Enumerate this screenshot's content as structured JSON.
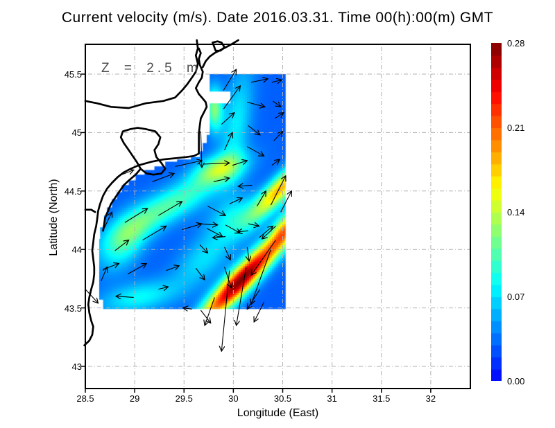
{
  "title": "Current velocity (m/s). Date 2016.03.31. Time 00(h):00(m) GMT",
  "annotation": {
    "depth_label": "Z = 2.5 m"
  },
  "axes": {
    "x": {
      "label": "Longitude (East)",
      "tick_labels": [
        "28.5",
        "29",
        "29.5",
        "30",
        "30.5",
        "31",
        "31.5",
        "32"
      ],
      "tick_values": [
        28.5,
        29,
        29.5,
        30,
        30.5,
        31,
        31.5,
        32
      ],
      "range": [
        28.5,
        32.4
      ]
    },
    "y": {
      "label": "Latitude (North)",
      "tick_labels": [
        "43",
        "43.5",
        "44",
        "44.5",
        "45",
        "45.5"
      ],
      "tick_values": [
        43,
        43.5,
        44,
        44.5,
        45,
        45.5
      ],
      "range": [
        42.81,
        45.75
      ]
    },
    "grid": true
  },
  "colorbar": {
    "tick_labels": [
      "0.00",
      "0.07",
      "0.14",
      "0.21",
      "0.28"
    ],
    "tick_values": [
      0,
      0.07,
      0.14,
      0.21,
      0.28
    ],
    "vmin": 0,
    "vmax": 0.28
  },
  "chart_data": {
    "type": "heatmap",
    "subtype": "vector-field-quiver-over-speed-heatmap",
    "title": "Current velocity (m/s). Date 2016.03.31. Time 00(h):00(m) GMT",
    "units": "m/s",
    "depth_m": 2.5,
    "date": "2016.03.31",
    "time_gmt": "00(h):00(m)",
    "xlabel": "Longitude (East)",
    "ylabel": "Latitude (North)",
    "legend_position": "right-colorbar",
    "colors": {
      "coast": "#000000",
      "grid": "#b0b0b0",
      "arrow": "#000000",
      "annotation": "#4d4d4d",
      "land": "#ffffff"
    },
    "field": {
      "comment": "speed (m/s) = base + sum of rotated gaussian blobs [lon,lat,amp,sigma_major_deg,sigma_minor_deg,rotation_deg]",
      "base": 0.03,
      "blobs": [
        [
          30.08,
          43.74,
          0.25,
          0.4,
          0.075,
          41
        ],
        [
          30.48,
          44.52,
          0.15,
          0.25,
          0.07,
          40
        ],
        [
          30.53,
          44.18,
          0.11,
          0.15,
          0.07,
          50
        ],
        [
          29.32,
          44.36,
          0.075,
          0.45,
          0.1,
          25
        ],
        [
          29.85,
          44.69,
          0.085,
          0.18,
          0.08,
          15
        ],
        [
          28.9,
          44.06,
          0.06,
          0.2,
          0.12,
          45
        ],
        [
          29.81,
          45.2,
          0.09,
          0.13,
          0.06,
          90
        ],
        [
          30.03,
          45.07,
          0.045,
          0.35,
          0.1,
          80
        ],
        [
          29.04,
          43.59,
          0.05,
          0.28,
          0.09,
          10
        ],
        [
          30.04,
          44.27,
          0.05,
          0.2,
          0.12,
          20
        ],
        [
          29.7,
          43.92,
          0.04,
          0.25,
          0.12,
          35
        ]
      ]
    },
    "data_region": [
      [
        29.76,
        45.5
      ],
      [
        30.53,
        45.5
      ],
      [
        30.53,
        43.49
      ],
      [
        28.68,
        43.49
      ],
      [
        28.68,
        43.57
      ],
      [
        28.6,
        43.57
      ],
      [
        28.6,
        43.62
      ],
      [
        28.56,
        43.62
      ],
      [
        28.56,
        43.88
      ],
      [
        28.59,
        43.88
      ],
      [
        28.59,
        44.0
      ],
      [
        28.62,
        44.0
      ],
      [
        28.62,
        44.09
      ],
      [
        28.65,
        44.09
      ],
      [
        28.65,
        44.19
      ],
      [
        28.69,
        44.19
      ],
      [
        28.69,
        44.29
      ],
      [
        28.72,
        44.29
      ],
      [
        28.72,
        44.36
      ],
      [
        28.77,
        44.36
      ],
      [
        28.77,
        44.43
      ],
      [
        28.82,
        44.43
      ],
      [
        28.82,
        44.49
      ],
      [
        28.87,
        44.49
      ],
      [
        28.87,
        44.55
      ],
      [
        28.94,
        44.55
      ],
      [
        28.94,
        44.59
      ],
      [
        29.01,
        44.59
      ],
      [
        29.01,
        44.64
      ],
      [
        29.1,
        44.64
      ],
      [
        29.1,
        44.68
      ],
      [
        29.2,
        44.68
      ],
      [
        29.2,
        44.71
      ],
      [
        29.31,
        44.71
      ],
      [
        29.31,
        44.75
      ],
      [
        29.43,
        44.75
      ],
      [
        29.43,
        44.77
      ],
      [
        29.57,
        44.77
      ],
      [
        29.57,
        44.79
      ],
      [
        29.66,
        44.79
      ],
      [
        29.66,
        44.84
      ],
      [
        29.69,
        44.84
      ],
      [
        29.69,
        44.91
      ],
      [
        29.73,
        44.91
      ],
      [
        29.73,
        44.98
      ],
      [
        29.76,
        44.98
      ],
      [
        29.76,
        45.25
      ],
      [
        29.97,
        45.25
      ],
      [
        29.97,
        45.35
      ],
      [
        29.76,
        45.35
      ]
    ],
    "coastlines": [
      [
        [
          28.5,
          45.27
        ],
        [
          28.62,
          45.25
        ],
        [
          28.76,
          45.22
        ],
        [
          28.94,
          45.21
        ],
        [
          29.11,
          45.25
        ],
        [
          29.29,
          45.27
        ],
        [
          29.41,
          45.3
        ],
        [
          29.48,
          45.36
        ],
        [
          29.53,
          45.41
        ],
        [
          29.58,
          45.47
        ],
        [
          29.62,
          45.52
        ],
        [
          29.64,
          45.59
        ],
        [
          29.62,
          45.66
        ],
        [
          29.64,
          45.72
        ],
        [
          29.63,
          45.79
        ]
      ],
      [
        [
          29.65,
          45.72
        ],
        [
          29.67,
          45.68
        ],
        [
          29.65,
          45.63
        ],
        [
          29.66,
          45.58
        ],
        [
          29.69,
          45.52
        ],
        [
          29.68,
          45.47
        ],
        [
          29.65,
          45.43
        ],
        [
          29.62,
          45.38
        ],
        [
          29.65,
          45.33
        ],
        [
          29.69,
          45.29
        ],
        [
          29.72,
          45.26
        ],
        [
          29.73,
          45.22
        ],
        [
          29.7,
          45.17
        ],
        [
          29.67,
          45.12
        ],
        [
          29.66,
          45.06
        ],
        [
          29.65,
          44.99
        ],
        [
          29.65,
          44.91
        ],
        [
          29.65,
          44.82
        ],
        [
          29.6,
          44.8
        ],
        [
          29.52,
          44.79
        ],
        [
          29.41,
          44.78
        ],
        [
          29.29,
          44.77
        ],
        [
          29.17,
          44.75
        ],
        [
          29.04,
          44.72
        ],
        [
          28.96,
          44.69
        ],
        [
          28.89,
          44.66
        ],
        [
          28.83,
          44.62
        ],
        [
          28.77,
          44.57
        ],
        [
          28.72,
          44.52
        ],
        [
          28.68,
          44.46
        ],
        [
          28.65,
          44.39
        ],
        [
          28.63,
          44.33
        ],
        [
          28.62,
          44.26
        ],
        [
          28.61,
          44.2
        ],
        [
          28.59,
          44.13
        ],
        [
          28.58,
          44.06
        ],
        [
          28.57,
          43.99
        ],
        [
          28.58,
          43.92
        ],
        [
          28.59,
          43.85
        ],
        [
          28.59,
          43.79
        ],
        [
          28.58,
          43.72
        ],
        [
          28.56,
          43.66
        ],
        [
          28.54,
          43.59
        ],
        [
          28.53,
          43.53
        ],
        [
          28.54,
          43.46
        ],
        [
          28.56,
          43.39
        ],
        [
          28.58,
          43.34
        ],
        [
          28.57,
          43.27
        ],
        [
          28.54,
          43.22
        ],
        [
          28.49,
          43.18
        ]
      ],
      [
        [
          30.05,
          45.79
        ],
        [
          29.97,
          45.75
        ],
        [
          29.88,
          45.71
        ],
        [
          29.81,
          45.68
        ],
        [
          29.76,
          45.65
        ],
        [
          29.72,
          45.61
        ],
        [
          29.69,
          45.56
        ]
      ],
      [
        [
          29.79,
          45.77
        ],
        [
          29.84,
          45.78
        ],
        [
          29.88,
          45.77
        ],
        [
          29.91,
          45.73
        ],
        [
          29.87,
          45.7
        ],
        [
          29.82,
          45.7
        ],
        [
          29.79,
          45.77
        ]
      ],
      [
        [
          29.11,
          45.03
        ],
        [
          29.21,
          45.01
        ],
        [
          29.26,
          44.96
        ],
        [
          29.24,
          44.9
        ],
        [
          29.2,
          44.85
        ],
        [
          29.22,
          44.79
        ],
        [
          29.27,
          44.74
        ],
        [
          29.31,
          44.69
        ],
        [
          29.27,
          44.65
        ],
        [
          29.19,
          44.64
        ],
        [
          29.12,
          44.65
        ],
        [
          29.06,
          44.69
        ],
        [
          29.02,
          44.75
        ],
        [
          28.98,
          44.8
        ],
        [
          28.94,
          44.85
        ],
        [
          28.89,
          44.91
        ],
        [
          28.86,
          44.96
        ],
        [
          28.88,
          45.01
        ],
        [
          28.96,
          45.03
        ],
        [
          29.03,
          45.04
        ],
        [
          29.11,
          45.03
        ]
      ],
      [
        [
          29.06,
          44.69
        ],
        [
          29.01,
          44.64
        ],
        [
          28.94,
          44.59
        ],
        [
          28.89,
          44.55
        ],
        [
          28.84,
          44.49
        ],
        [
          28.8,
          44.44
        ],
        [
          28.76,
          44.39
        ],
        [
          28.73,
          44.33
        ],
        [
          28.7,
          44.27
        ],
        [
          28.69,
          44.21
        ],
        [
          28.68,
          44.16
        ]
      ],
      [
        [
          28.5,
          44.34
        ],
        [
          28.56,
          44.34
        ],
        [
          28.6,
          44.32
        ]
      ]
    ],
    "arrows": [
      [
        29.9,
        45.36,
        0.13,
        0.18
      ],
      [
        30.18,
        45.43,
        0.17,
        0.03
      ],
      [
        30.39,
        45.43,
        0.1,
        0.02
      ],
      [
        29.9,
        45.2,
        0.17,
        0.2
      ],
      [
        30.14,
        45.26,
        0.18,
        -0.04
      ],
      [
        30.4,
        45.27,
        0.08,
        -0.05
      ],
      [
        29.88,
        45.07,
        0.13,
        0.1
      ],
      [
        30.42,
        45.12,
        0.09,
        0.05
      ],
      [
        29.91,
        44.85,
        0.08,
        0.15
      ],
      [
        30.15,
        45.06,
        0.12,
        -0.08
      ],
      [
        30.41,
        44.93,
        0.09,
        0.08
      ],
      [
        30.14,
        44.88,
        0.17,
        -0.08
      ],
      [
        29.67,
        45.01,
        0.01,
        -0.31
      ],
      [
        29.7,
        44.73,
        0.26,
        0.01
      ],
      [
        29.99,
        44.72,
        0.15,
        0.04
      ],
      [
        29.41,
        44.71,
        0.27,
        0.05
      ],
      [
        28.84,
        44.63,
        0.15,
        0.05
      ],
      [
        29.18,
        44.58,
        0.22,
        0.07
      ],
      [
        29.8,
        44.58,
        0.16,
        0.03
      ],
      [
        30.19,
        44.55,
        -0.14,
        -0.01
      ],
      [
        30.39,
        44.72,
        0.08,
        0.05
      ],
      [
        30.24,
        44.37,
        0.09,
        0.13
      ],
      [
        30.38,
        44.38,
        0.15,
        0.25
      ],
      [
        29.96,
        44.39,
        0.13,
        0.05
      ],
      [
        30.15,
        44.16,
        -0.11,
        -0.01
      ],
      [
        29.92,
        44.11,
        -0.13,
        -0.01
      ],
      [
        28.69,
        44.18,
        0.08,
        0.14
      ],
      [
        28.9,
        44.23,
        0.23,
        0.12
      ],
      [
        29.24,
        44.29,
        0.24,
        0.12
      ],
      [
        29.08,
        44.08,
        0.24,
        0.12
      ],
      [
        28.8,
        43.99,
        0.14,
        0.09
      ],
      [
        29.48,
        44.17,
        0.2,
        0.05
      ],
      [
        29.74,
        44.37,
        0.18,
        -0.08
      ],
      [
        29.73,
        44.18,
        0.16,
        -0.07
      ],
      [
        28.68,
        43.83,
        0.16,
        0.05
      ],
      [
        28.93,
        43.79,
        0.19,
        0.09
      ],
      [
        29.32,
        43.82,
        0.13,
        0.04
      ],
      [
        28.66,
        43.73,
        0.06,
        0.12
      ],
      [
        29.24,
        43.66,
        0.1,
        0.02
      ],
      [
        28.99,
        43.59,
        -0.18,
        0.01
      ],
      [
        28.5,
        43.66,
        0.13,
        -0.12
      ],
      [
        29.64,
        44.22,
        0.2,
        -0.01
      ],
      [
        29.92,
        44.21,
        0.15,
        -0.07
      ],
      [
        30.15,
        44.22,
        0.11,
        -0.02
      ],
      [
        30.43,
        44.2,
        -0.14,
        -0.11
      ],
      [
        29.66,
        44.04,
        0.08,
        -0.07
      ],
      [
        29.91,
        44.02,
        0.06,
        -0.11
      ],
      [
        30.14,
        44.02,
        0.02,
        -0.12
      ],
      [
        30.43,
        44.08,
        -0.25,
        -0.3
      ],
      [
        29.62,
        43.84,
        0.09,
        -0.1
      ],
      [
        29.91,
        43.85,
        0.07,
        -0.18
      ],
      [
        30.13,
        43.85,
        -0.1,
        -0.5
      ],
      [
        30.38,
        44.0,
        -0.2,
        -0.47
      ],
      [
        29.96,
        43.82,
        -0.08,
        -0.69
      ],
      [
        29.81,
        43.59,
        -0.1,
        -0.24
      ],
      [
        30.27,
        43.66,
        -0.13,
        -0.17
      ],
      [
        29.67,
        43.48,
        0.1,
        -0.11
      ],
      [
        30.31,
        43.55,
        -0.1,
        -0.17
      ],
      [
        29.58,
        43.49,
        -0.09,
        0.01
      ],
      [
        30.26,
        44.1,
        0.14,
        0.1
      ],
      [
        30.48,
        44.32,
        0.11,
        0.18
      ]
    ]
  }
}
